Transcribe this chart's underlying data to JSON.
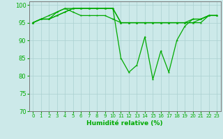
{
  "xlabel": "Humidité relative (%)",
  "ylim": [
    70,
    101
  ],
  "xlim": [
    -0.5,
    23.5
  ],
  "yticks": [
    70,
    75,
    80,
    85,
    90,
    95,
    100
  ],
  "xticks": [
    0,
    1,
    2,
    3,
    4,
    5,
    6,
    7,
    8,
    9,
    10,
    11,
    12,
    13,
    14,
    15,
    16,
    17,
    18,
    19,
    20,
    21,
    22,
    23
  ],
  "bg_color": "#cce9e9",
  "grid_color": "#aad0d0",
  "line_color": "#00aa00",
  "series": [
    [
      95,
      96,
      96,
      98,
      99,
      99,
      99,
      99,
      99,
      99,
      99,
      85,
      81,
      83,
      91,
      79,
      87,
      81,
      90,
      94,
      96,
      96,
      97,
      97
    ],
    [
      95,
      96,
      97,
      98,
      99,
      98,
      97,
      97,
      97,
      97,
      96,
      95,
      95,
      95,
      95,
      95,
      95,
      95,
      95,
      95,
      96,
      96,
      97,
      97
    ],
    [
      95,
      96,
      96,
      97,
      98,
      99,
      99,
      99,
      99,
      99,
      99,
      95,
      95,
      95,
      95,
      95,
      95,
      95,
      95,
      95,
      95,
      96,
      97,
      97
    ],
    [
      95,
      96,
      96,
      97,
      98,
      99,
      99,
      99,
      99,
      99,
      99,
      95,
      95,
      95,
      95,
      95,
      95,
      95,
      95,
      95,
      95,
      95,
      97,
      97
    ]
  ]
}
